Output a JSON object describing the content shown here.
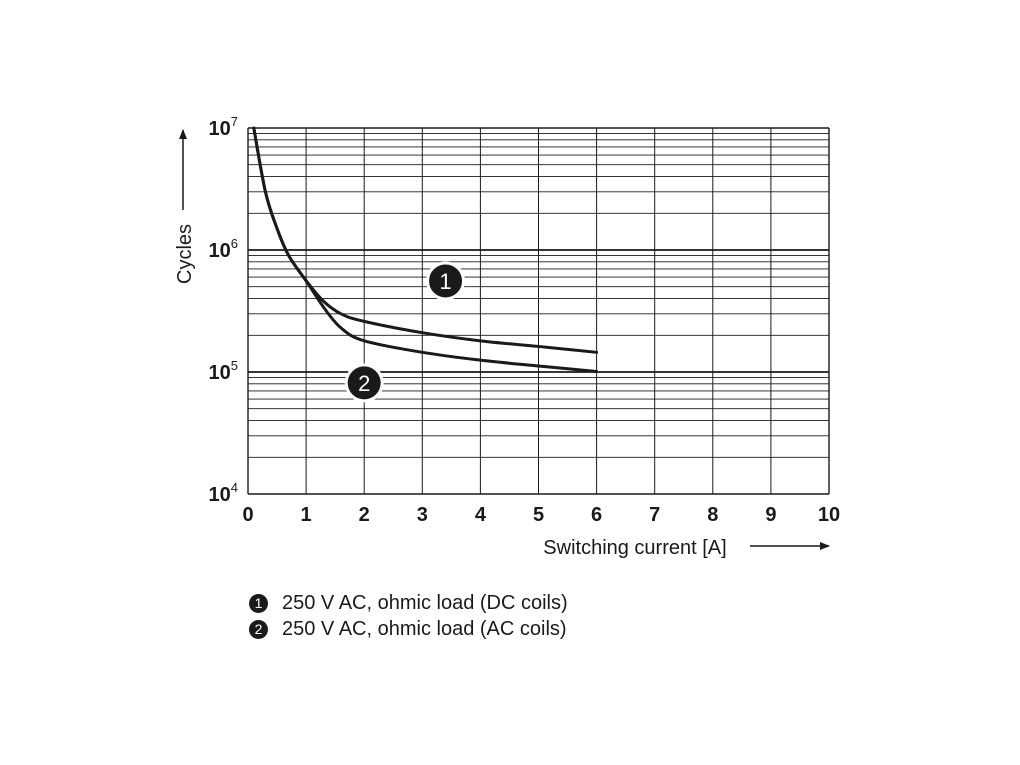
{
  "chart_data": {
    "type": "line",
    "xlabel": "Switching current [A]",
    "ylabel": "Cycles",
    "xlim": [
      0,
      10
    ],
    "ylim": [
      10000,
      10000000
    ],
    "y_scale": "log",
    "x_ticks": [
      "0",
      "1",
      "2",
      "3",
      "4",
      "5",
      "6",
      "7",
      "8",
      "9",
      "10"
    ],
    "y_ticks": [
      {
        "base": "10",
        "exp": "4"
      },
      {
        "base": "10",
        "exp": "5"
      },
      {
        "base": "10",
        "exp": "6"
      },
      {
        "base": "10",
        "exp": "7"
      }
    ],
    "grid": true,
    "series": [
      {
        "name": "250 V AC, ohmic load (DC coils)",
        "marker": "1",
        "x": [
          0.1,
          0.3,
          0.5,
          0.7,
          1.0,
          1.3,
          1.6,
          2.0,
          3.0,
          4.0,
          5.0,
          6.0
        ],
        "y": [
          10000000,
          3000000,
          1500000,
          900000,
          560000,
          380000,
          300000,
          260000,
          210000,
          180000,
          162000,
          145000
        ]
      },
      {
        "name": "250 V AC, ohmic load (AC coils)",
        "marker": "2",
        "x": [
          0.1,
          0.3,
          0.5,
          0.7,
          1.0,
          1.3,
          1.6,
          2.0,
          3.0,
          4.0,
          5.0,
          6.0
        ],
        "y": [
          10000000,
          3000000,
          1500000,
          900000,
          560000,
          340000,
          230000,
          180000,
          145000,
          125000,
          112000,
          101000
        ]
      }
    ],
    "legend": {
      "placement": "bottom",
      "items": [
        {
          "marker": "1",
          "label": "250 V AC, ohmic load (DC coils)"
        },
        {
          "marker": "2",
          "label": "250 V AC, ohmic load (AC coils)"
        }
      ]
    },
    "colors": {
      "line": "#1a1a1a",
      "grid": "#1a1a1a",
      "marker_fill": "#1a1a1a",
      "marker_text": "#ffffff"
    }
  }
}
